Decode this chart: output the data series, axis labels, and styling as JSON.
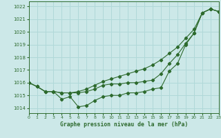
{
  "hours": [
    0,
    1,
    2,
    3,
    4,
    5,
    6,
    7,
    8,
    9,
    10,
    11,
    12,
    13,
    14,
    15,
    16,
    17,
    18,
    19,
    20,
    21,
    22,
    23
  ],
  "line1": [
    1016.0,
    1015.7,
    1015.3,
    1015.3,
    1014.7,
    1014.9,
    1014.1,
    1014.2,
    1014.6,
    1014.9,
    1015.0,
    1015.0,
    1015.2,
    1015.2,
    1015.3,
    1015.5,
    1015.6,
    1016.9,
    1017.5,
    1019.0,
    1019.9,
    1021.5,
    1021.8,
    1021.6
  ],
  "line2": [
    1016.0,
    1015.7,
    1015.3,
    1015.3,
    1015.2,
    1015.2,
    1015.2,
    1015.3,
    1015.5,
    1015.8,
    1015.9,
    1015.9,
    1016.0,
    1016.0,
    1016.1,
    1016.2,
    1016.7,
    1017.5,
    1018.2,
    1019.1,
    1019.9,
    1021.5,
    1021.8,
    1021.6
  ],
  "line3": [
    1016.0,
    1015.7,
    1015.3,
    1015.3,
    1015.2,
    1015.2,
    1015.3,
    1015.5,
    1015.8,
    1016.1,
    1016.3,
    1016.5,
    1016.7,
    1016.9,
    1017.1,
    1017.4,
    1017.8,
    1018.3,
    1018.8,
    1019.5,
    1020.2,
    1021.5,
    1021.8,
    1021.6
  ],
  "line_color": "#2d6a2d",
  "bg_color": "#cce8e8",
  "grid_color": "#b0d8d8",
  "xlabel": "Graphe pression niveau de la mer (hPa)",
  "yticks": [
    1014,
    1015,
    1016,
    1017,
    1018,
    1019,
    1020,
    1021,
    1022
  ],
  "ylim": [
    1013.6,
    1022.4
  ],
  "xlim": [
    0,
    23
  ]
}
